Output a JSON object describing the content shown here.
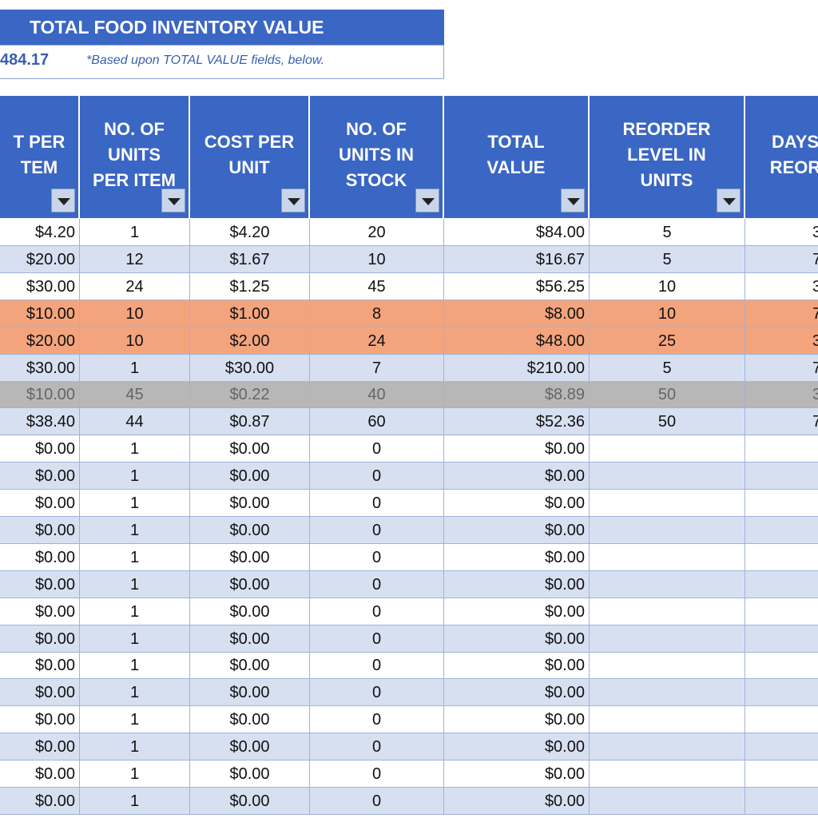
{
  "summary": {
    "title": "TOTAL FOOD INVENTORY VALUE",
    "value": "484.17",
    "note": "*Based upon TOTAL VALUE fields, below."
  },
  "table": {
    "headers": [
      "T PER\nTEM",
      "NO. OF\nUNITS\nPER ITEM",
      "COST PER\nUNIT",
      "NO. OF\nUNITS IN\nSTOCK",
      "TOTAL\nVALUE",
      "REORDER\nLEVEL IN\nUNITS",
      "DAYS\nREOR"
    ],
    "rows": [
      [
        "$4.20",
        "1",
        "$4.20",
        "20",
        "$84.00",
        "5",
        "3"
      ],
      [
        "$20.00",
        "12",
        "$1.67",
        "10",
        "$16.67",
        "5",
        "7"
      ],
      [
        "$30.00",
        "24",
        "$1.25",
        "45",
        "$56.25",
        "10",
        "3"
      ],
      [
        "$10.00",
        "10",
        "$1.00",
        "8",
        "$8.00",
        "10",
        "7"
      ],
      [
        "$20.00",
        "10",
        "$2.00",
        "24",
        "$48.00",
        "25",
        "3"
      ],
      [
        "$30.00",
        "1",
        "$30.00",
        "7",
        "$210.00",
        "5",
        "7"
      ],
      [
        "$10.00",
        "45",
        "$0.22",
        "40",
        "$8.89",
        "50",
        "3"
      ],
      [
        "$38.40",
        "44",
        "$0.87",
        "60",
        "$52.36",
        "50",
        "7"
      ],
      [
        "$0.00",
        "1",
        "$0.00",
        "0",
        "$0.00"
      ],
      [
        "$0.00",
        "1",
        "$0.00",
        "0",
        "$0.00"
      ],
      [
        "$0.00",
        "1",
        "$0.00",
        "0",
        "$0.00"
      ],
      [
        "$0.00",
        "1",
        "$0.00",
        "0",
        "$0.00"
      ],
      [
        "$0.00",
        "1",
        "$0.00",
        "0",
        "$0.00"
      ],
      [
        "$0.00",
        "1",
        "$0.00",
        "0",
        "$0.00"
      ],
      [
        "$0.00",
        "1",
        "$0.00",
        "0",
        "$0.00"
      ],
      [
        "$0.00",
        "1",
        "$0.00",
        "0",
        "$0.00"
      ],
      [
        "$0.00",
        "1",
        "$0.00",
        "0",
        "$0.00"
      ],
      [
        "$0.00",
        "1",
        "$0.00",
        "0",
        "$0.00"
      ],
      [
        "$0.00",
        "1",
        "$0.00",
        "0",
        "$0.00"
      ],
      [
        "$0.00",
        "1",
        "$0.00",
        "0",
        "$0.00"
      ],
      [
        "$0.00",
        "1",
        "$0.00",
        "0",
        "$0.00"
      ],
      [
        "$0.00",
        "1",
        "$0.00",
        "0",
        "$0.00"
      ]
    ]
  }
}
